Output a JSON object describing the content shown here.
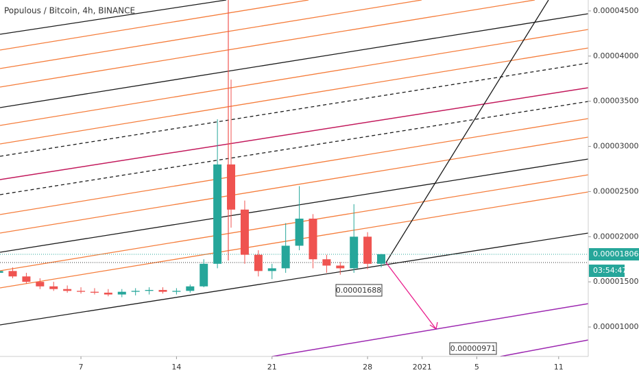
{
  "chart_data": {
    "type": "candlestick",
    "title": "Populous / Bitcoin, 4h, BINANCE",
    "x": [
      1,
      2,
      3,
      4,
      5,
      6,
      7,
      8,
      9,
      10,
      11,
      12,
      13,
      14,
      15,
      16,
      17,
      18,
      19,
      20,
      21,
      22,
      23,
      24,
      25,
      26,
      27,
      28,
      29
    ],
    "open": [
      1.6e-05,
      1.62e-05,
      1.56e-05,
      1.5e-05,
      1.45e-05,
      1.42e-05,
      1.4e-05,
      1.39e-05,
      1.38e-05,
      1.36e-05,
      1.39e-05,
      1.4e-05,
      1.41e-05,
      1.39e-05,
      1.4e-05,
      1.45e-05,
      1.7e-05,
      2.8e-05,
      2.3e-05,
      1.8e-05,
      1.62e-05,
      1.65e-05,
      1.9e-05,
      2.2e-05,
      1.75e-05,
      1.68e-05,
      1.65e-05,
      2e-05,
      1.7e-05
    ],
    "high": [
      1.68e-05,
      1.66e-05,
      1.6e-05,
      1.54e-05,
      1.5e-05,
      1.46e-05,
      1.44e-05,
      1.43e-05,
      1.42e-05,
      1.42e-05,
      1.43e-05,
      1.44e-05,
      1.44e-05,
      1.43e-05,
      1.47e-05,
      1.75e-05,
      3.3e-05,
      3.74e-05,
      2.4e-05,
      1.85e-05,
      1.7e-05,
      2.15e-05,
      2.56e-05,
      2.25e-05,
      1.8e-05,
      1.72e-05,
      2.36e-05,
      2.05e-05,
      1.81e-05
    ],
    "low": [
      1.56e-05,
      1.54e-05,
      1.48e-05,
      1.42e-05,
      1.4e-05,
      1.38e-05,
      1.37e-05,
      1.36e-05,
      1.34e-05,
      1.33e-05,
      1.35e-05,
      1.36e-05,
      1.37e-05,
      1.36e-05,
      1.38e-05,
      1.44e-05,
      1.65e-05,
      2.1e-05,
      1.7e-05,
      1.56e-05,
      1.53e-05,
      1.6e-05,
      1.85e-05,
      1.65e-05,
      1.6e-05,
      1.58e-05,
      1.6e-05,
      1.64e-05,
      1.66e-05
    ],
    "close": [
      1.62e-05,
      1.56e-05,
      1.5e-05,
      1.45e-05,
      1.42e-05,
      1.4e-05,
      1.39e-05,
      1.38e-05,
      1.36e-05,
      1.39e-05,
      1.4e-05,
      1.41e-05,
      1.39e-05,
      1.4e-05,
      1.45e-05,
      1.7e-05,
      2.8e-05,
      2.3e-05,
      1.8e-05,
      1.62e-05,
      1.65e-05,
      1.9e-05,
      2.2e-05,
      1.75e-05,
      1.68e-05,
      1.65e-05,
      2e-05,
      1.7e-05,
      1.806e-05
    ],
    "up_color": "#26a69a",
    "down_color": "#ef5350",
    "xlim": [
      1.07,
      44.17
    ],
    "xticks": [
      7,
      {
        "value": 14,
        "label": "14"
      },
      {
        "value": 21,
        "label": "21"
      },
      {
        "value": 28,
        "label": "28"
      },
      {
        "value": 32,
        "label": "2021"
      },
      {
        "value": 36,
        "label": "5"
      },
      {
        "value": 42,
        "label": "11"
      }
    ],
    "ylim": [
      6.74e-06,
      4.621e-05
    ],
    "yticks": [
      {
        "value": 1e-05,
        "label": "0.00001000"
      },
      {
        "value": 1.5e-05,
        "label": "0.00001500"
      },
      {
        "value": 2e-05,
        "label": "0.00002000"
      },
      {
        "value": 2.5e-05,
        "label": "0.00002500"
      },
      {
        "value": 3e-05,
        "label": "0.00003000"
      },
      {
        "value": 3.5e-05,
        "label": "0.00003500"
      },
      {
        "value": 4e-05,
        "label": "0.00004000"
      },
      {
        "value": 4.5e-05,
        "label": "0.00004500"
      }
    ],
    "annotations": [
      "0.00001688",
      "0.00000971"
    ],
    "price_label": "0.00001806",
    "countdown": "03:54:47"
  }
}
